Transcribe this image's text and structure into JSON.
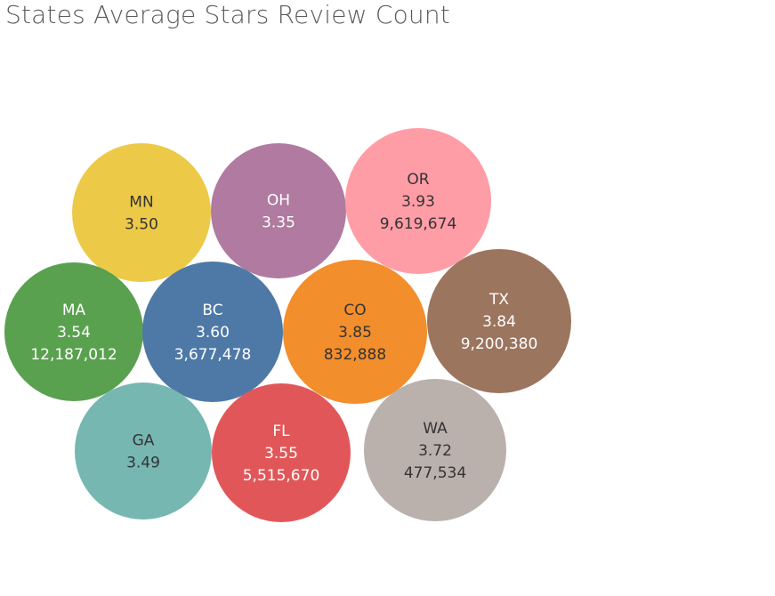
{
  "chart_data": {
    "type": "bubble",
    "title": "States Average Stars Review Count",
    "points": [
      {
        "state": "MN",
        "avg_stars": "3.50",
        "review_count": "",
        "color": "#EDC948",
        "text_color": "#333333"
      },
      {
        "state": "OH",
        "avg_stars": "3.35",
        "review_count": "",
        "color": "#B07AA1",
        "text_color": "#ffffff"
      },
      {
        "state": "OR",
        "avg_stars": "3.93",
        "review_count": "9,619,674",
        "color": "#FF9DA7",
        "text_color": "#333333"
      },
      {
        "state": "MA",
        "avg_stars": "3.54",
        "review_count": "12,187,012",
        "color": "#59A14F",
        "text_color": "#ffffff"
      },
      {
        "state": "BC",
        "avg_stars": "3.60",
        "review_count": "3,677,478",
        "color": "#4E79A7",
        "text_color": "#ffffff"
      },
      {
        "state": "CO",
        "avg_stars": "3.85",
        "review_count": "832,888",
        "color": "#F28E2B",
        "text_color": "#333333"
      },
      {
        "state": "TX",
        "avg_stars": "3.84",
        "review_count": "9,200,380",
        "color": "#9C755F",
        "text_color": "#ffffff"
      },
      {
        "state": "GA",
        "avg_stars": "3.49",
        "review_count": "",
        "color": "#76B7B2",
        "text_color": "#333333"
      },
      {
        "state": "FL",
        "avg_stars": "3.55",
        "review_count": "5,515,670",
        "color": "#E15759",
        "text_color": "#ffffff"
      },
      {
        "state": "WA",
        "avg_stars": "3.72",
        "review_count": "477,534",
        "color": "#BAB0AC",
        "text_color": "#333333"
      }
    ]
  }
}
